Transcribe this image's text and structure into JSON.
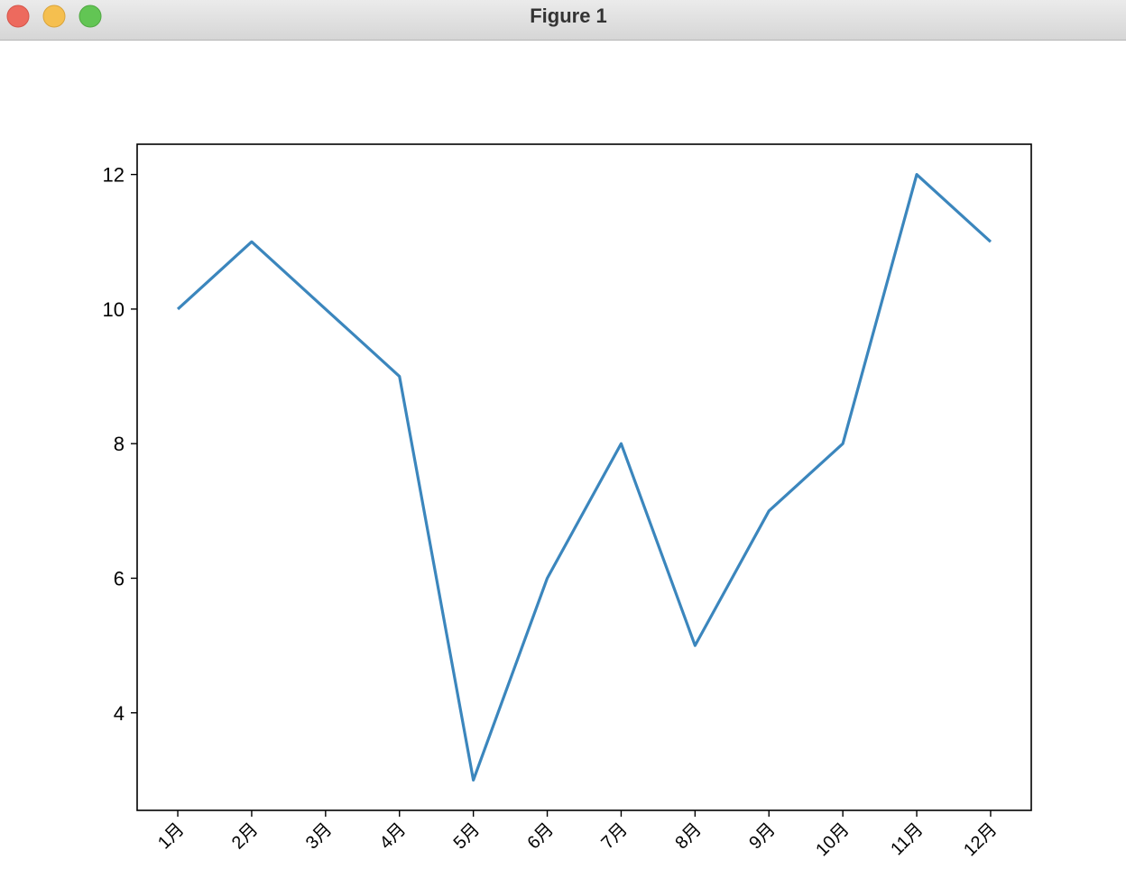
{
  "window": {
    "title": "Figure 1"
  },
  "chart_data": {
    "type": "line",
    "categories": [
      "1月",
      "2月",
      "3月",
      "4月",
      "5月",
      "6月",
      "7月",
      "8月",
      "9月",
      "10月",
      "11月",
      "12月"
    ],
    "series": [
      {
        "color": "#3b86bd",
        "values": [
          10,
          11,
          10,
          9,
          3,
          6,
          8,
          5,
          7,
          8,
          12,
          11
        ]
      }
    ],
    "ylim": [
      2.55,
      12.45
    ],
    "yticks": [
      4,
      6,
      8,
      10,
      12
    ]
  }
}
